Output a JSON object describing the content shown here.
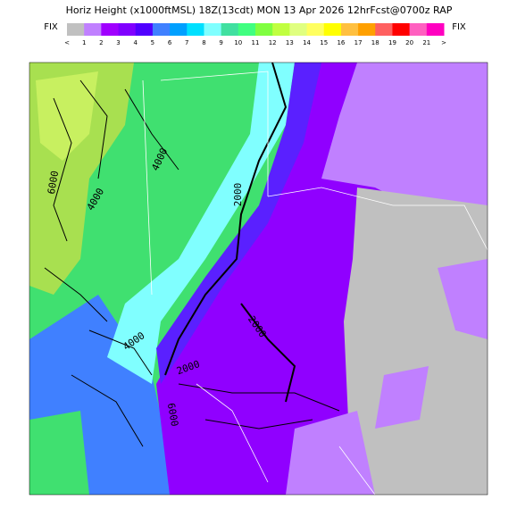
{
  "header": {
    "title": "Horiz Height (x1000ftMSL) 18Z(13cdt) MON 13 Apr 2026 12hrFcst@0700z RAP",
    "fix_left": "FIX",
    "fix_right": "FIX"
  },
  "colorbar": {
    "colors": [
      "#c0c0c0",
      "#c080ff",
      "#a000ff",
      "#8000ff",
      "#5000ff",
      "#4080ff",
      "#00a0ff",
      "#00e0ff",
      "#80ffff",
      "#40e0a0",
      "#40ff80",
      "#80ff40",
      "#c0ff40",
      "#e0ff80",
      "#ffff60",
      "#ffff00",
      "#ffc040",
      "#ffa000",
      "#ff6060",
      "#ff0000",
      "#ff60c0",
      "#ff00c0"
    ],
    "labels": [
      "<",
      "1",
      "2",
      "3",
      "4",
      "5",
      "6",
      "7",
      "8",
      "9",
      "10",
      "11",
      "12",
      "13",
      "14",
      "15",
      "16",
      "17",
      "18",
      "19",
      "20",
      "21",
      ">"
    ]
  },
  "map": {
    "contour_labels": [
      "6000",
      "4000",
      "4000",
      "2000",
      "2000",
      "4000",
      "2000",
      "6000"
    ]
  }
}
